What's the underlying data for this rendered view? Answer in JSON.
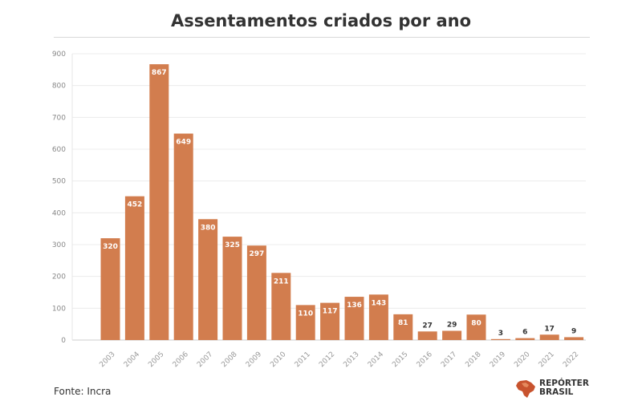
{
  "chart_data": {
    "type": "bar",
    "title": "Assentamentos criados por ano",
    "categories": [
      "2003",
      "2004",
      "2005",
      "2006",
      "2007",
      "2008",
      "2009",
      "2010",
      "2011",
      "2012",
      "2013",
      "2014",
      "2015",
      "2016",
      "2017",
      "2018",
      "2019",
      "2020",
      "2021",
      "2022"
    ],
    "values": [
      320,
      452,
      867,
      649,
      380,
      325,
      297,
      211,
      110,
      117,
      136,
      143,
      81,
      27,
      29,
      80,
      3,
      6,
      17,
      9
    ],
    "ylim": [
      0,
      900
    ],
    "yticks": [
      0,
      100,
      200,
      300,
      400,
      500,
      600,
      700,
      800,
      900
    ],
    "bar_color": "#d27d4e",
    "grid": true
  },
  "source": "Fonte: Incra",
  "logo": {
    "line1": "REPÓRTER",
    "line2": "BRASIL",
    "icon": "brazil-map-icon"
  }
}
